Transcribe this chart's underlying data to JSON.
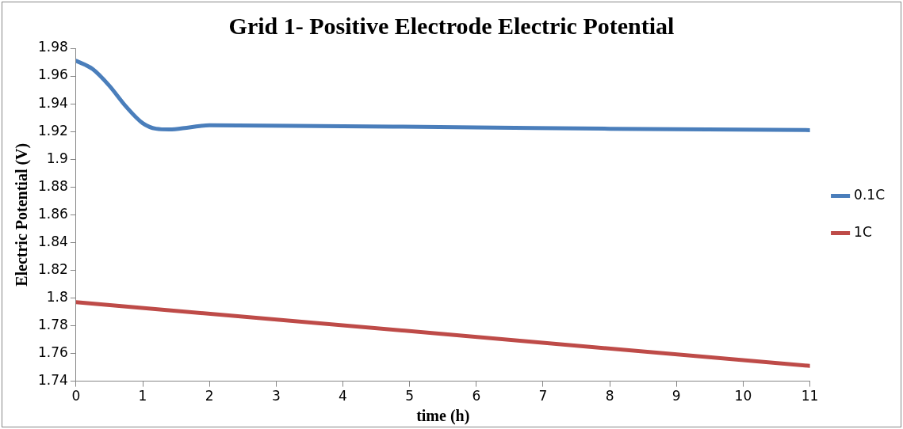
{
  "chart_data": {
    "type": "line",
    "title": "Grid 1- Positive Electrode Electric Potential",
    "xlabel": "time (h)",
    "ylabel": "Electric Potential (V)",
    "xlim": [
      0,
      11
    ],
    "xticks": [
      0,
      1,
      2,
      3,
      4,
      5,
      6,
      7,
      8,
      9,
      10,
      11
    ],
    "ylim": [
      1.74,
      1.98
    ],
    "yticks": [
      1.74,
      1.76,
      1.78,
      1.8,
      1.82,
      1.84,
      1.86,
      1.88,
      1.9,
      1.92,
      1.94,
      1.96,
      1.98
    ],
    "grid": false,
    "legend": "right",
    "marker": "none",
    "line_style": "solid",
    "series": [
      {
        "name": "0.1C",
        "color": "#4a7ebb",
        "x": [
          0,
          0.25,
          0.5,
          0.75,
          1,
          1.2,
          1.4,
          1.7,
          2,
          4,
          6,
          8,
          11
        ],
        "values": [
          1.971,
          1.965,
          1.953,
          1.938,
          1.926,
          1.922,
          1.9215,
          1.923,
          1.9245,
          1.9238,
          1.923,
          1.922,
          1.921
        ]
      },
      {
        "name": "1C",
        "color": "#be4b48",
        "x": [
          0,
          11
        ],
        "values": [
          1.797,
          1.751
        ]
      }
    ]
  }
}
